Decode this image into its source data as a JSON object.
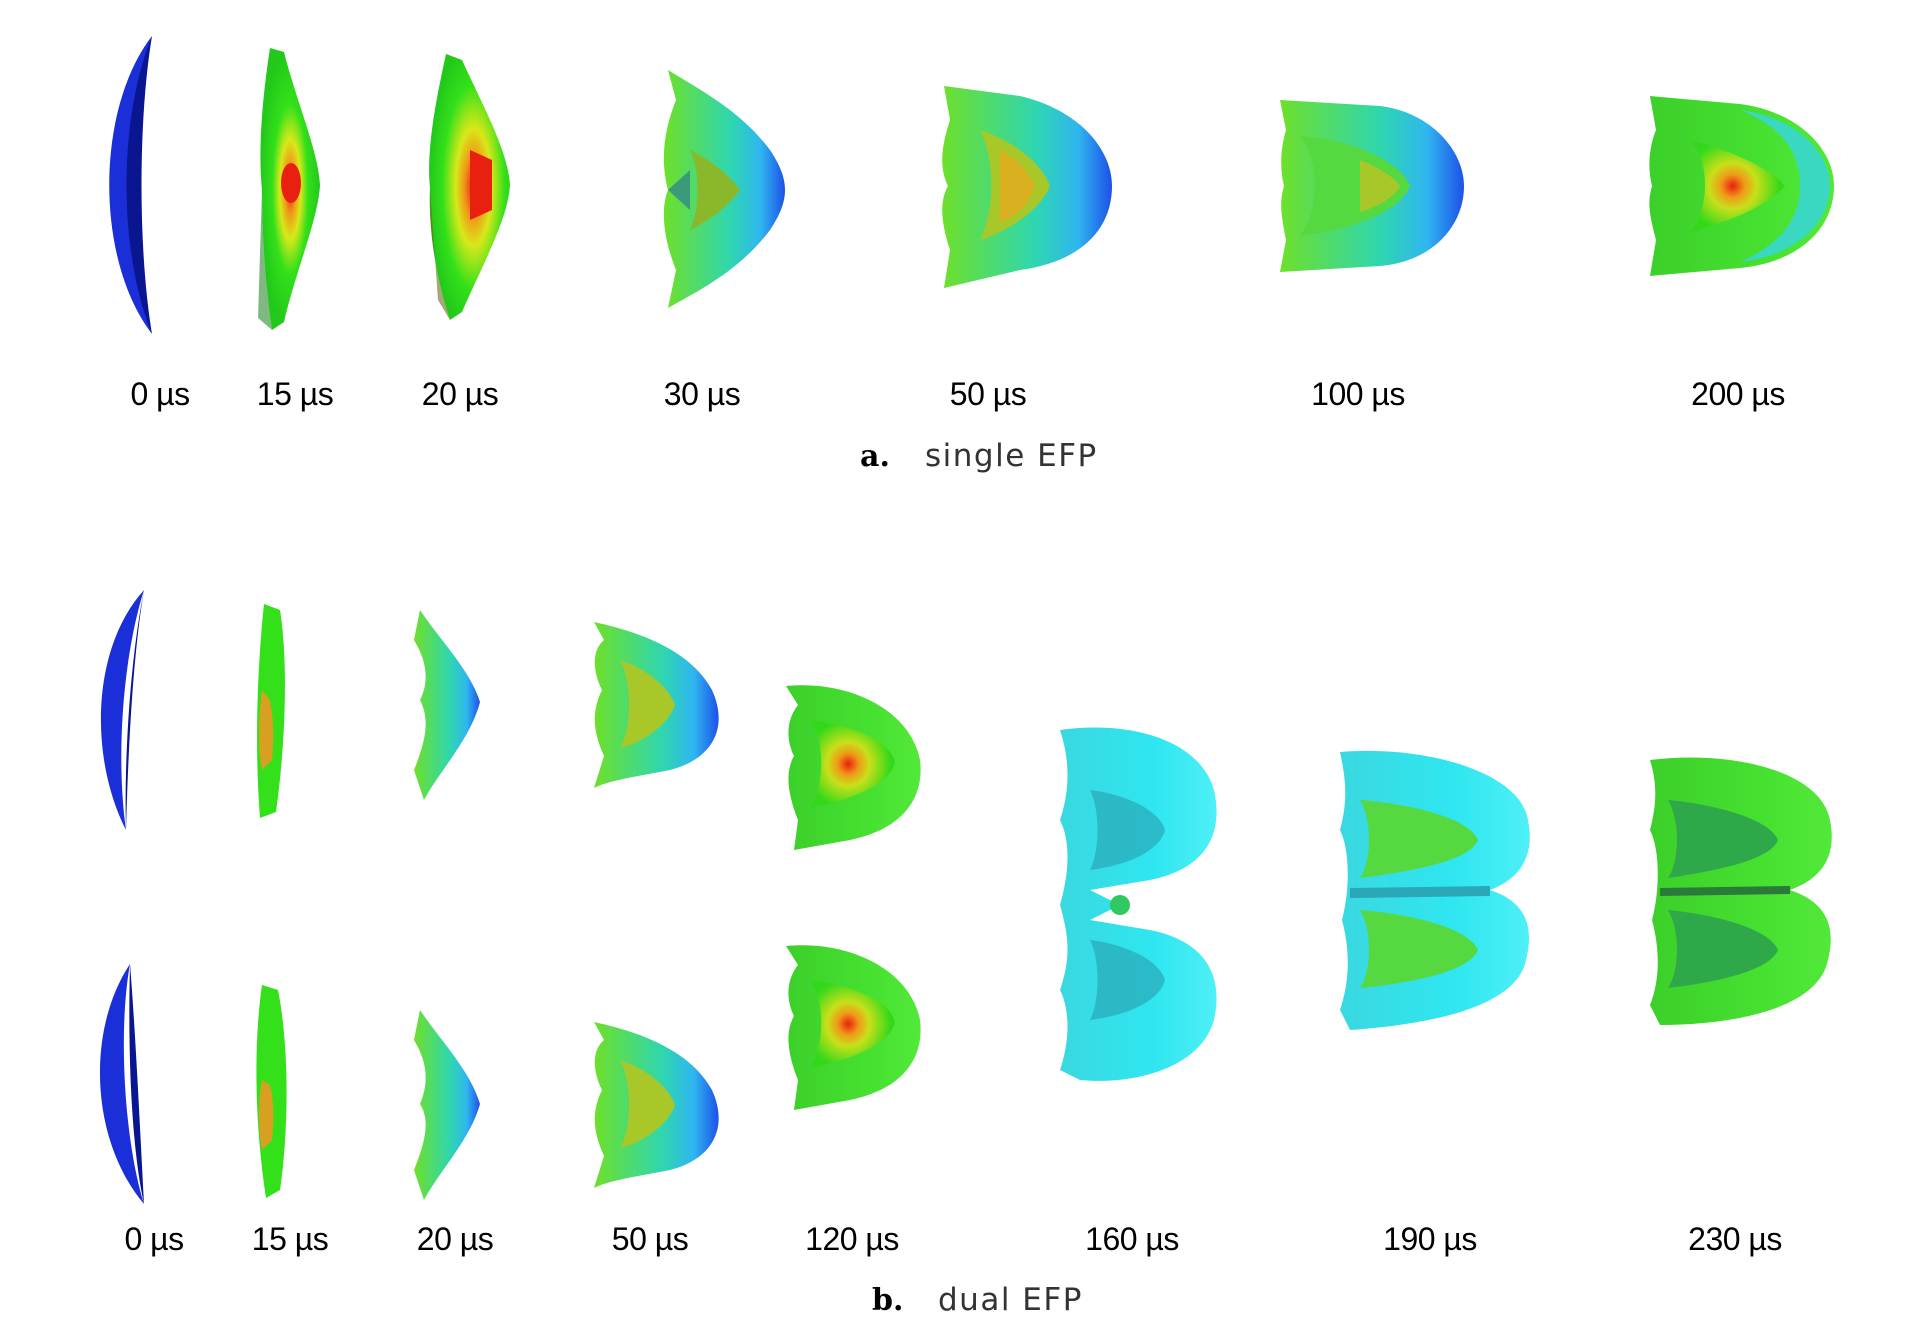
{
  "panel_a": {
    "letter": "a.",
    "title": "single EFP",
    "time_labels": [
      "0 µs",
      "15 µs",
      "20 µs",
      "30 µs",
      "50 µs",
      "100  µs",
      "200  µs"
    ]
  },
  "panel_b": {
    "letter": "b.",
    "title": "dual EFP",
    "time_labels": [
      "0 µs",
      "15 µs",
      "20 µs",
      "50 µs",
      "120 µs",
      "160 µs",
      "190  µs",
      "230  µs"
    ]
  },
  "colors": {
    "liner": "#1a2fd8",
    "liner_dark": "#0a1590",
    "green": "#33e01a",
    "cyan": "#2fe6f0",
    "blue": "#1e6cf0",
    "yellow": "#d8e81a",
    "orange": "#f09a18",
    "red": "#e82010"
  }
}
